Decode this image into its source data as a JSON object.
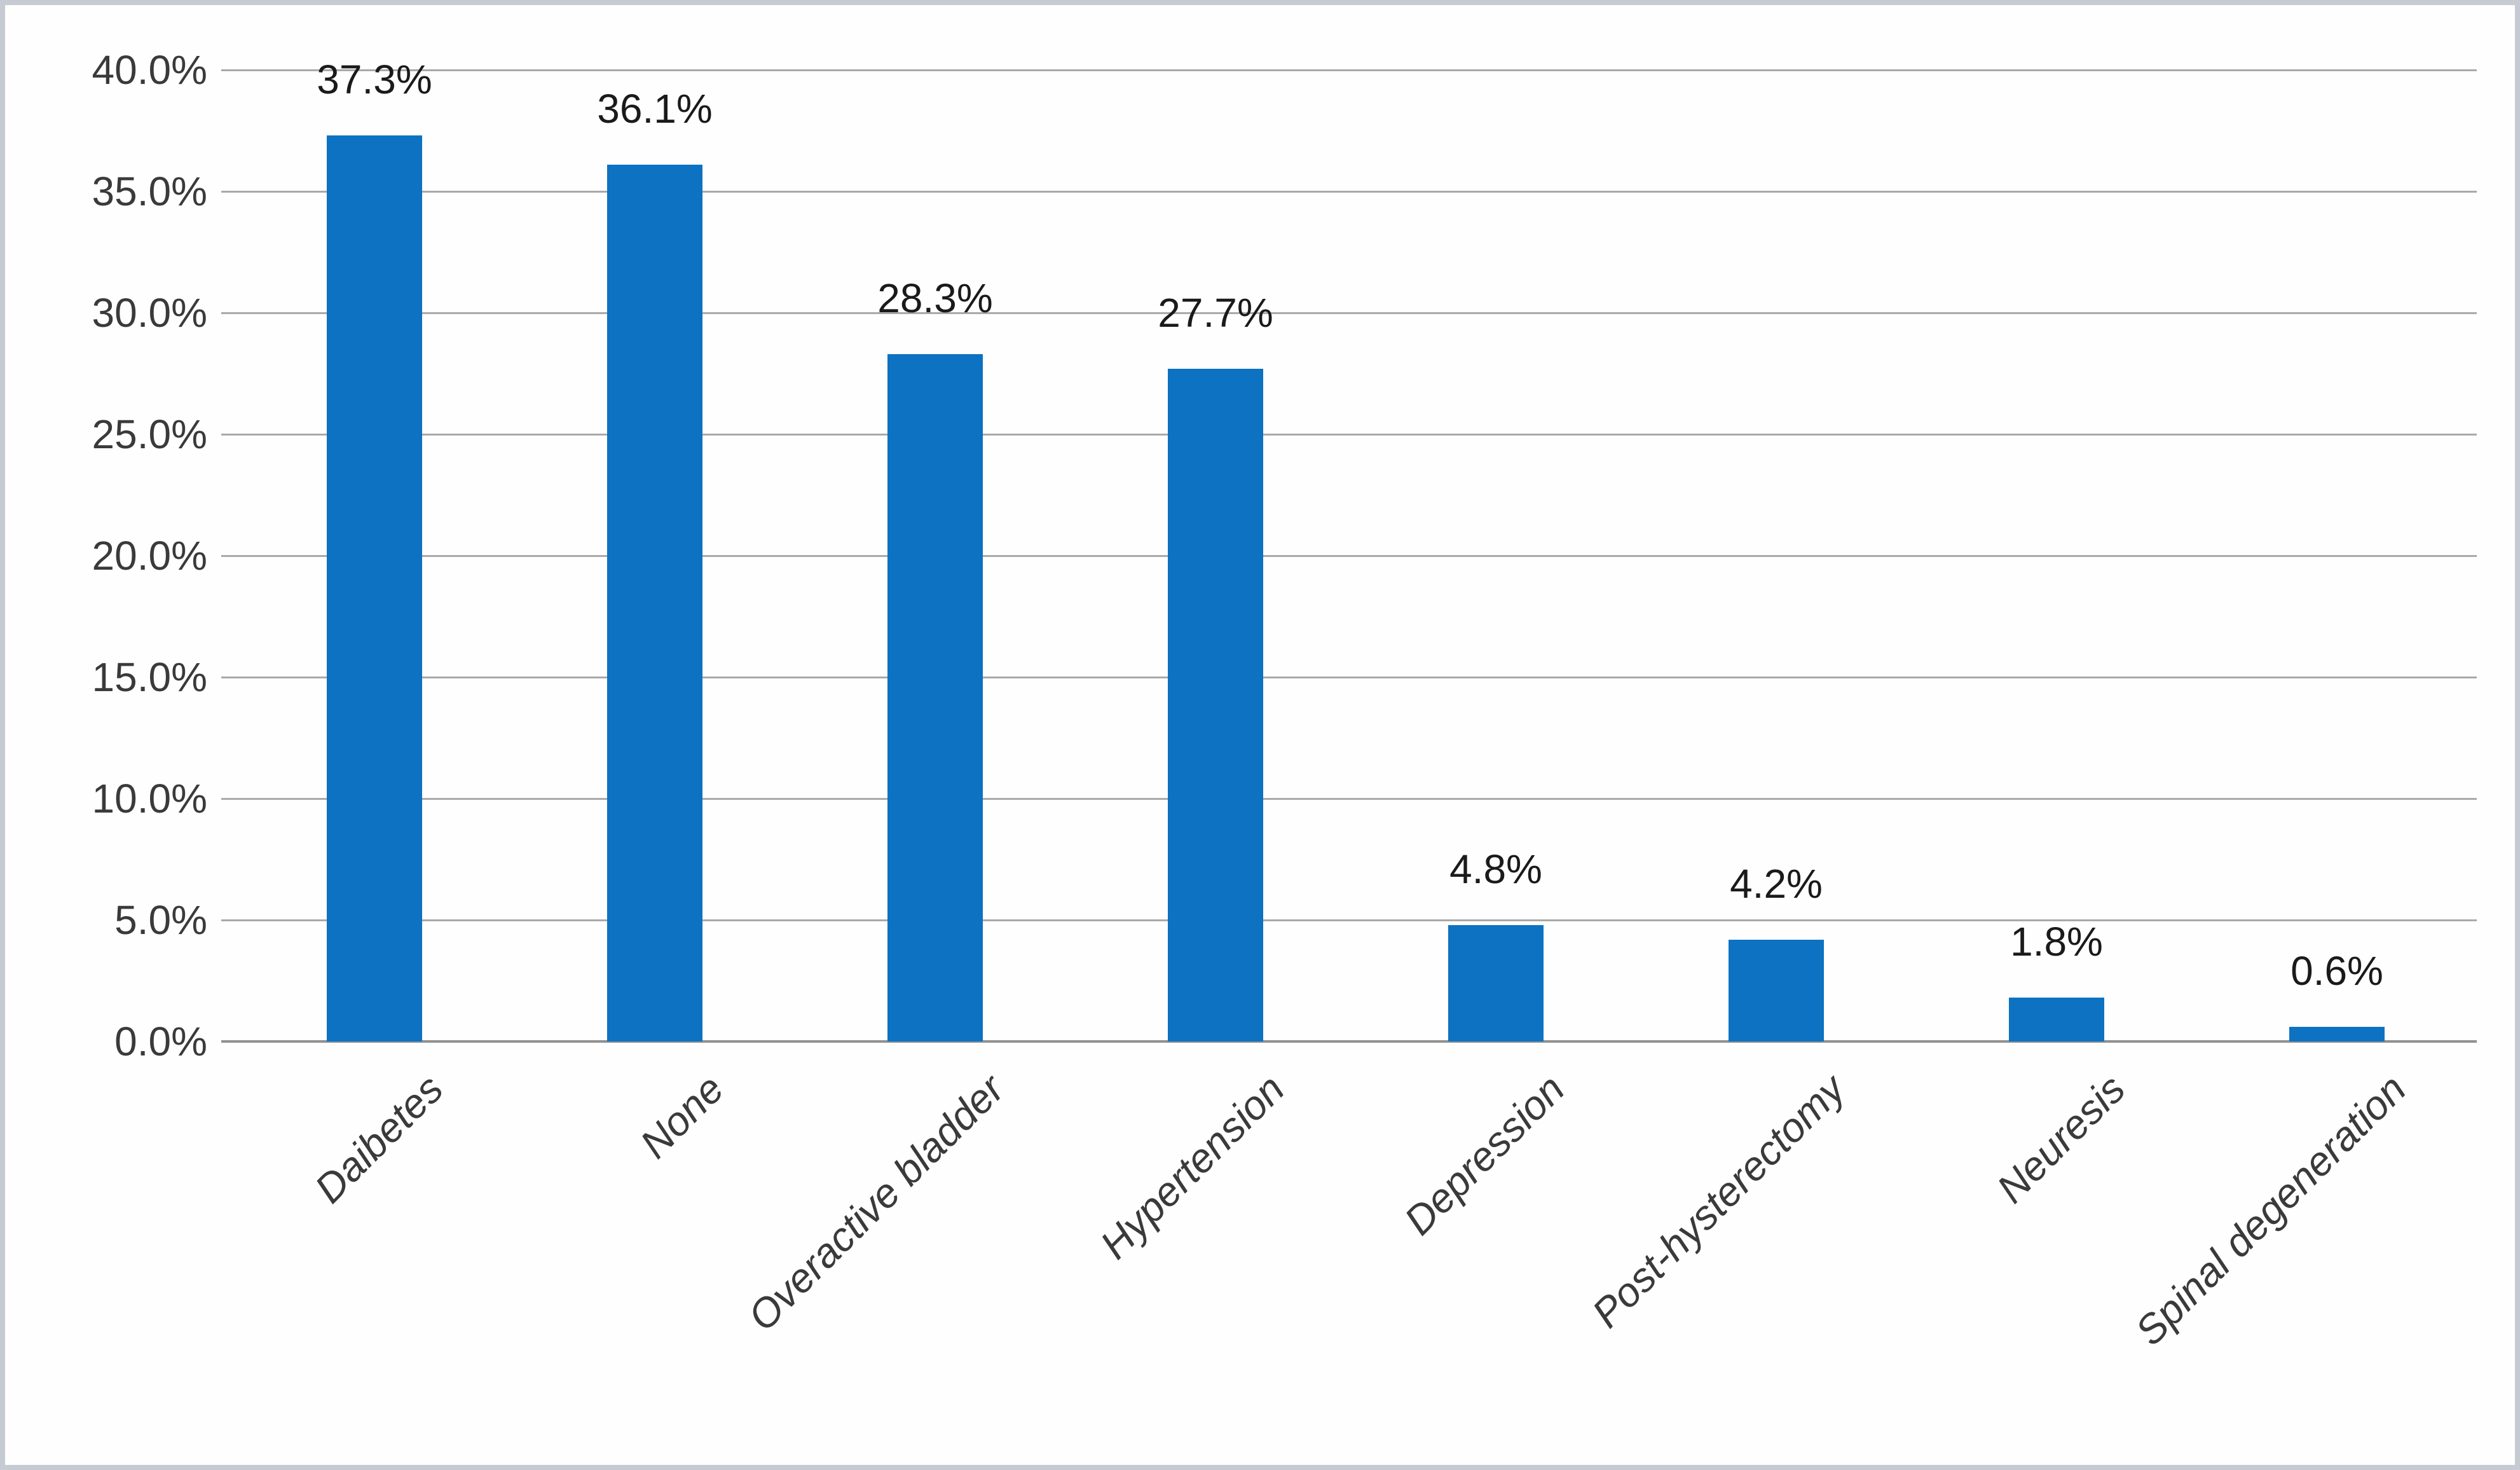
{
  "frame": {
    "border_color": "#c5cad3",
    "background_color": "#fefefe"
  },
  "chart_data": {
    "type": "bar",
    "categories": [
      "Daibetes",
      "None",
      "Overactive bladder",
      "Hypertension",
      "Depression",
      "Post-hysterectomy",
      "Neuresis",
      "Spinal degeneration"
    ],
    "values": [
      37.3,
      36.1,
      28.3,
      27.7,
      4.8,
      4.2,
      1.8,
      0.6
    ],
    "data_labels": [
      "37.3%",
      "36.1%",
      "28.3%",
      "27.7%",
      "4.8%",
      "4.2%",
      "1.8%",
      "0.6%"
    ],
    "y_ticks": [
      "40.0%",
      "35.0%",
      "30.0%",
      "25.0%",
      "20.0%",
      "15.0%",
      "10.0%",
      "5.0%",
      "0.0%"
    ],
    "ylim": [
      0,
      40
    ],
    "y_tick_step": 5,
    "grid": true,
    "legend": false,
    "title": "",
    "xlabel": "",
    "ylabel": "",
    "bar_color": "#0d72c1",
    "gridline_color": "#a9a9a9",
    "axis_line_color": "#919191",
    "tick_text_color": "#3a3a3a",
    "data_label_color": "#1a1a1a"
  }
}
